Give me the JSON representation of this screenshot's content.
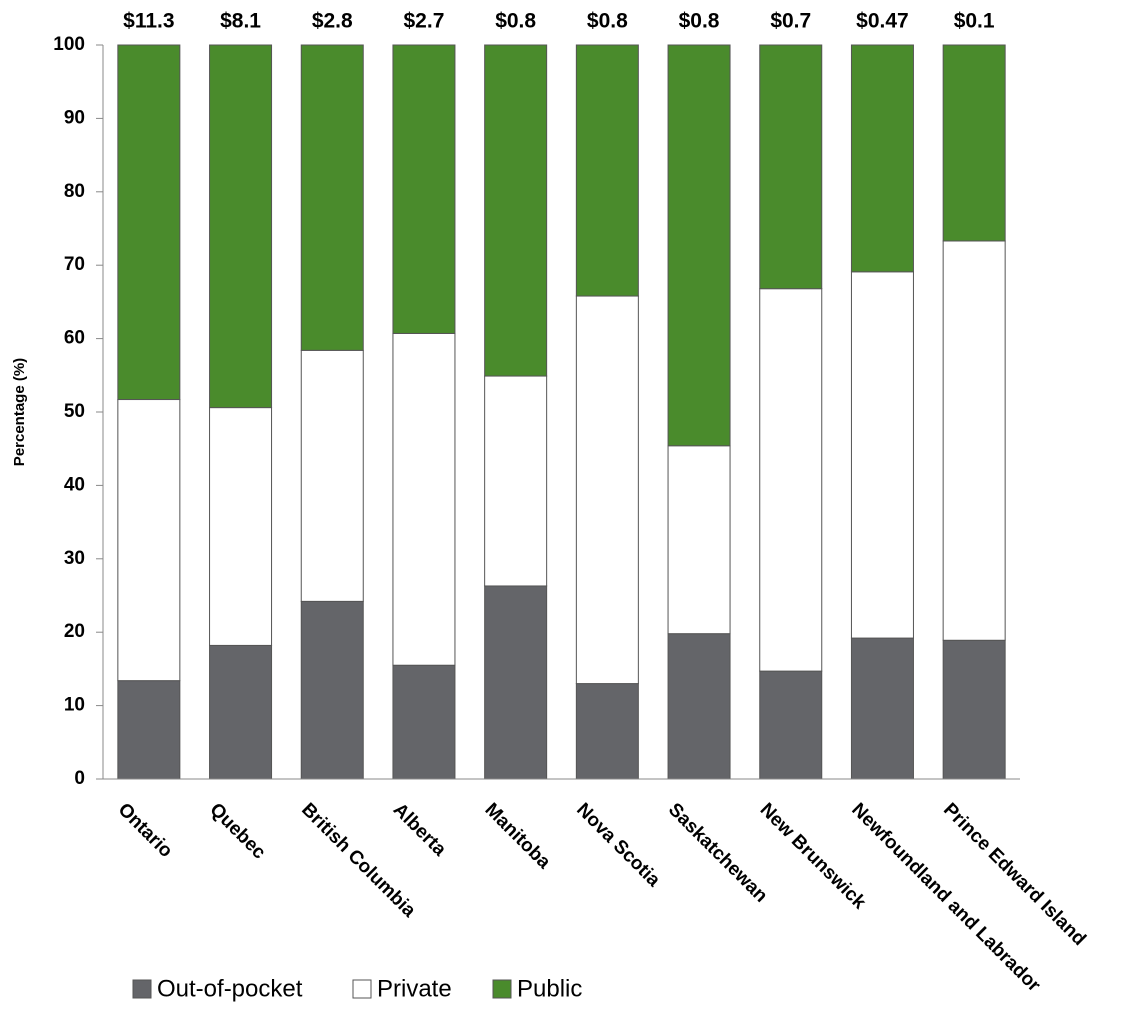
{
  "chart_data": {
    "type": "stacked_bar",
    "y_label": "Percentage (%)",
    "categories": [
      "Ontario",
      "Quebec",
      "British Columbia",
      "Alberta",
      "Manitoba",
      "Nova Scotia",
      "Saskatchewan",
      "New Brunswick",
      "Newfoundland and Labrador",
      "Prince Edward Island"
    ],
    "annotations": [
      "$11.3",
      "$8.1",
      "$2.8",
      "$2.7",
      "$0.8",
      "$0.8",
      "$0.8",
      "$0.7",
      "$0.47",
      "$0.1"
    ],
    "series": [
      {
        "name": "Out-of-pocket",
        "color": "#646569",
        "values": [
          13.4,
          18.2,
          24.2,
          15.5,
          26.3,
          13.0,
          19.8,
          14.7,
          19.2,
          18.9
        ]
      },
      {
        "name": "Private",
        "color": "#ffffff",
        "values": [
          38.3,
          32.4,
          34.2,
          45.2,
          28.6,
          52.8,
          25.6,
          52.1,
          49.9,
          54.4
        ]
      },
      {
        "name": "Public",
        "color": "#4a8b2c",
        "values": [
          48.3,
          49.4,
          41.6,
          39.3,
          45.1,
          34.2,
          54.6,
          33.2,
          30.9,
          26.7
        ]
      }
    ],
    "ylim": [
      0,
      100
    ],
    "yticks": [
      0,
      10,
      20,
      30,
      40,
      50,
      60,
      70,
      80,
      90,
      100
    ]
  }
}
